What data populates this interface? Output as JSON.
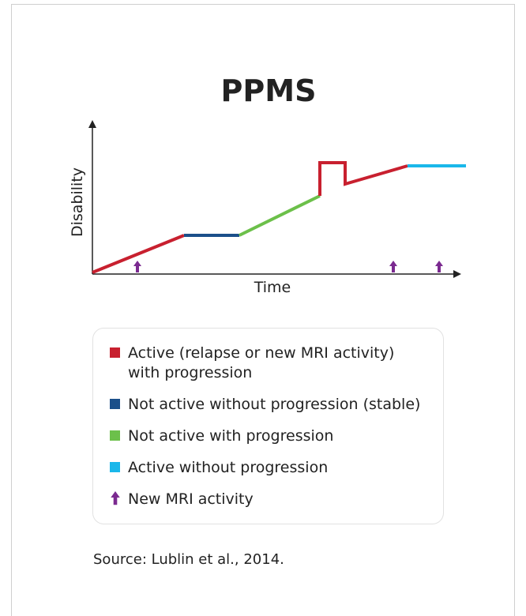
{
  "title": "PPMS",
  "y_label": "Disability",
  "x_label": "Time",
  "legend": [
    {
      "lines": [
        "Active (relapse or new MRI activity)",
        "with progression"
      ],
      "color": "#c8202f"
    },
    {
      "lines": [
        "Not active without progression (stable)"
      ],
      "color": "#1b4f8a"
    },
    {
      "lines": [
        "Not active with progression"
      ],
      "color": "#6cc04a"
    },
    {
      "lines": [
        "Active without progression"
      ],
      "color": "#1ab7ea"
    },
    {
      "lines": [
        "New MRI activity"
      ],
      "color": "#7b2a90"
    }
  ],
  "source": "Source: Lublin et al., 2014."
}
